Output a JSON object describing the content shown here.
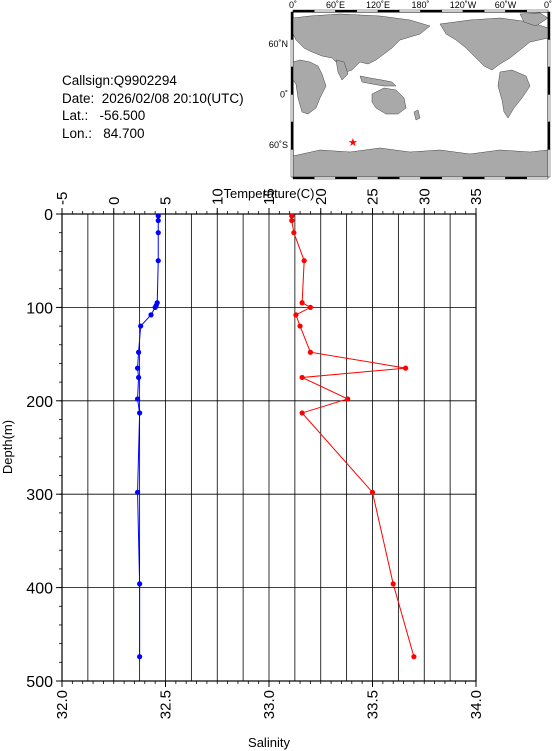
{
  "info": {
    "callsign": "Callsign:Q9902294",
    "date": "Date:  2026/02/08 20:10(UTC)",
    "lat": "Lat.:   -56.500",
    "lon": "Lon.:   84.700"
  },
  "map": {
    "top_labels": [
      "0˚",
      "60˚E",
      "120˚E",
      "180˚",
      "120˚W",
      "60˚W",
      "0˚"
    ],
    "left_labels": [
      "60˚N",
      "0˚",
      "60˚S"
    ],
    "marker": {
      "lon": 84.7,
      "lat": -56.5,
      "color": "#ff0000"
    },
    "land_color": "#a9a9a9",
    "ocean_color": "#ffffff"
  },
  "chart_data": {
    "type": "line",
    "ylabel": "Depth(m)",
    "ylim": [
      500,
      0
    ],
    "yticks": [
      "0",
      "100",
      "200",
      "300",
      "400",
      "500"
    ],
    "top_axis": {
      "label": "Temperature(C)",
      "range": [
        -5,
        35
      ],
      "ticks": [
        "-5",
        "0",
        "5",
        "10",
        "15",
        "20",
        "25",
        "30",
        "35"
      ]
    },
    "bottom_axis": {
      "label": "Salinity",
      "range": [
        32.0,
        34.0
      ],
      "ticks": [
        "32.0",
        "32.5",
        "33.0",
        "33.5",
        "34.0"
      ]
    },
    "grid": true,
    "series": [
      {
        "color": "#0000ff",
        "axis": "top",
        "points": [
          [
            4.3,
            2
          ],
          [
            4.3,
            7
          ],
          [
            4.3,
            20
          ],
          [
            4.3,
            50
          ],
          [
            4.2,
            95
          ],
          [
            4.1,
            98
          ],
          [
            4.0,
            100
          ],
          [
            3.6,
            108
          ],
          [
            2.6,
            120
          ],
          [
            2.4,
            148
          ],
          [
            2.3,
            165
          ],
          [
            2.4,
            175
          ],
          [
            2.3,
            198
          ],
          [
            2.5,
            213
          ],
          [
            2.3,
            298
          ],
          [
            2.5,
            396
          ],
          [
            2.5,
            474
          ]
        ]
      },
      {
        "color": "#ff0000",
        "axis": "bottom",
        "points": [
          [
            33.11,
            2
          ],
          [
            33.11,
            7
          ],
          [
            33.12,
            20
          ],
          [
            33.17,
            50
          ],
          [
            33.16,
            95
          ],
          [
            33.2,
            100
          ],
          [
            33.13,
            108
          ],
          [
            33.15,
            120
          ],
          [
            33.2,
            148
          ],
          [
            33.66,
            165
          ],
          [
            33.16,
            175
          ],
          [
            33.38,
            198
          ],
          [
            33.16,
            213
          ],
          [
            33.5,
            298
          ],
          [
            33.6,
            396
          ],
          [
            33.7,
            474
          ]
        ]
      }
    ]
  }
}
